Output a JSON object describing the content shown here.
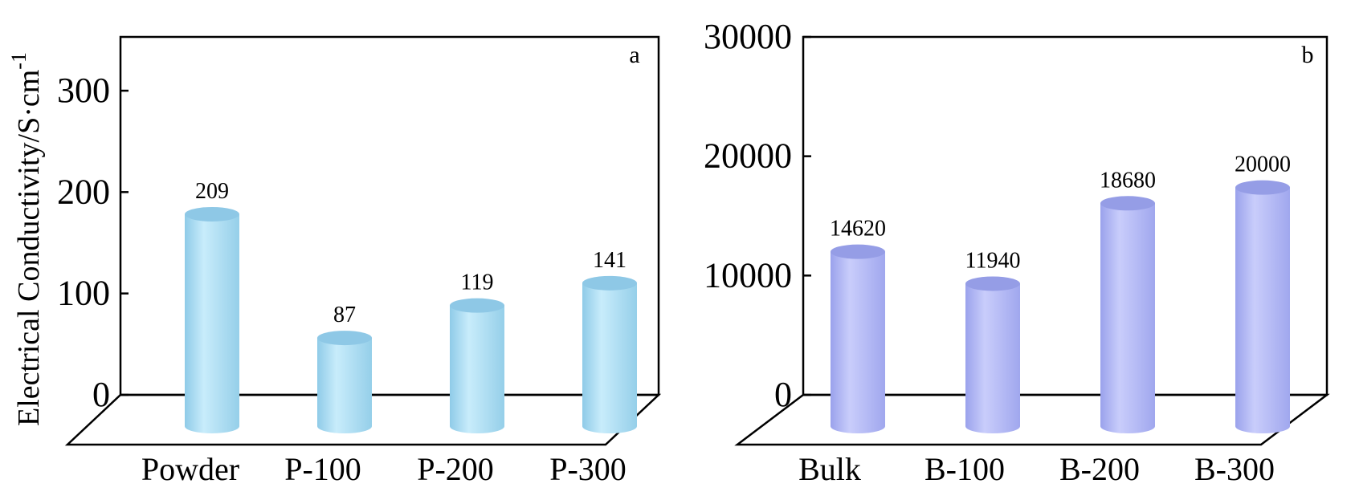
{
  "chart_data": [
    {
      "panel": "a",
      "type": "bar",
      "ylabel": "Electrical Conductivity/S·cm",
      "ylabel_sup": "-1",
      "ylim": [
        0,
        350
      ],
      "yticks": [
        0,
        100,
        200,
        300
      ],
      "ytick_labels": [
        "0",
        "100",
        "200",
        "300"
      ],
      "categories": [
        "Powder",
        "P-100",
        "P-200",
        "P-300"
      ],
      "values": [
        209,
        87,
        119,
        141
      ],
      "data_labels": [
        "209",
        "87",
        "119",
        "141"
      ],
      "bar_color": "#aee0f5",
      "bar_top_color": "#8ec8e6"
    },
    {
      "panel": "b",
      "type": "bar",
      "ylim": [
        0,
        30000
      ],
      "yticks": [
        0,
        10000,
        20000,
        30000
      ],
      "ytick_labels": [
        "0",
        "10000",
        "20000",
        "30000"
      ],
      "categories": [
        "Bulk",
        "B-100",
        "B-200",
        "B-300"
      ],
      "values": [
        14620,
        11940,
        18680,
        20000
      ],
      "data_labels": [
        "14620",
        "11940",
        "18680",
        "20000"
      ],
      "bar_color": "#b3b9f5",
      "bar_top_color": "#959de6"
    }
  ]
}
